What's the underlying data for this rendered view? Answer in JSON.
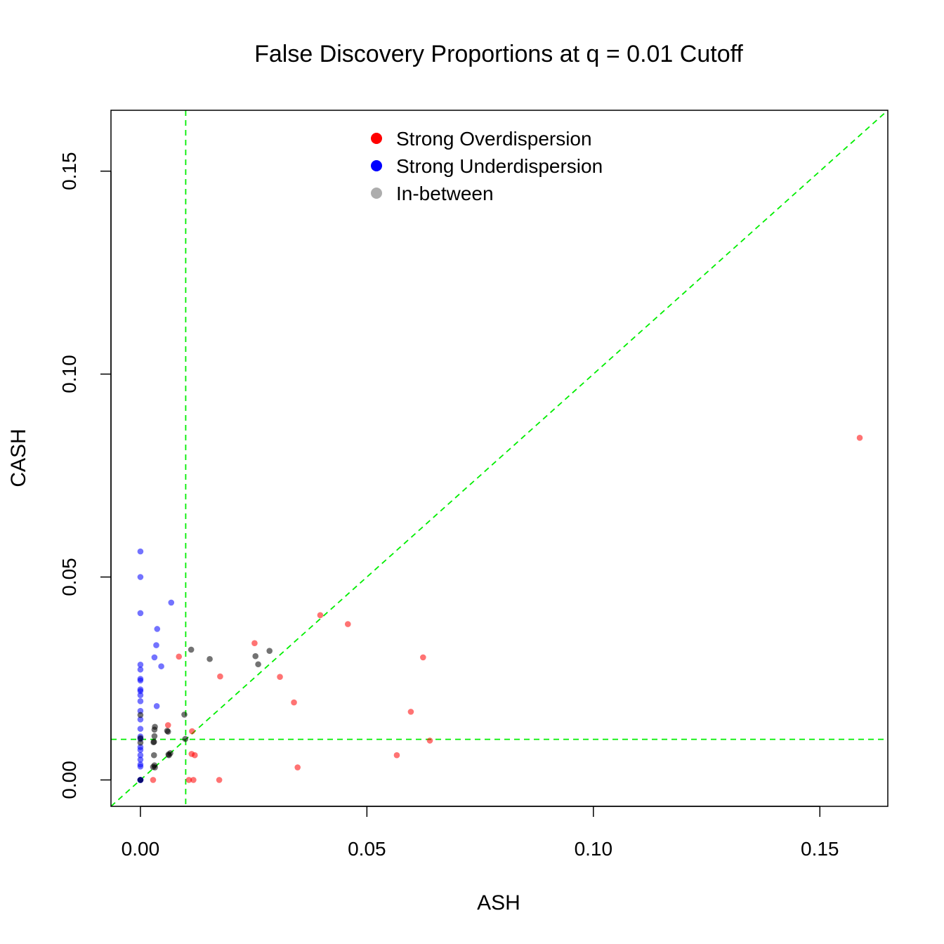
{
  "chart_data": {
    "type": "scatter",
    "title": "False Discovery Proportions at q = 0.01 Cutoff",
    "xlabel": "ASH",
    "ylabel": "CASH",
    "xlim": [
      -0.0065,
      0.165
    ],
    "ylim": [
      -0.0065,
      0.165
    ],
    "x_ticks": [
      0.0,
      0.05,
      0.1,
      0.15
    ],
    "y_ticks": [
      0.0,
      0.05,
      0.1,
      0.15
    ],
    "x_tick_labels": [
      "0.00",
      "0.05",
      "0.10",
      "0.15"
    ],
    "y_tick_labels": [
      "0.00",
      "0.05",
      "0.10",
      "0.15"
    ],
    "reference_lines": {
      "color": "#00ee00",
      "style": "dashed",
      "vertical_x": 0.01,
      "horizontal_y": 0.01,
      "diagonal": "y = x"
    },
    "legend": {
      "position": "top-center",
      "entries": [
        "Strong Overdispersion",
        "Strong Underdispersion",
        "In-between"
      ]
    },
    "series": [
      {
        "name": "Strong Overdispersion",
        "color": "#ff0000",
        "points": [
          [
            0.1588,
            0.0843
          ],
          [
            0.0397,
            0.0406
          ],
          [
            0.0458,
            0.0384
          ],
          [
            0.0252,
            0.0337
          ],
          [
            0.0624,
            0.0302
          ],
          [
            0.0085,
            0.0304
          ],
          [
            0.0176,
            0.0255
          ],
          [
            0.0308,
            0.0254
          ],
          [
            0.0339,
            0.0191
          ],
          [
            0.0597,
            0.0168
          ],
          [
            0.0061,
            0.0135
          ],
          [
            0.0114,
            0.012
          ],
          [
            0.0639,
            0.0097
          ],
          [
            0.0113,
            0.0064
          ],
          [
            0.012,
            0.0061
          ],
          [
            0.0566,
            0.0061
          ],
          [
            0.0347,
            0.0031
          ],
          [
            0.0028,
            0.0
          ],
          [
            0.0107,
            0.0
          ],
          [
            0.0117,
            0.0
          ],
          [
            0.0174,
            0.0
          ]
        ]
      },
      {
        "name": "Strong Underdispersion",
        "color": "#0000ff",
        "points": [
          [
            0.0,
            0.0563
          ],
          [
            0.0,
            0.05
          ],
          [
            0.0068,
            0.0437
          ],
          [
            0.0,
            0.0411
          ],
          [
            0.0037,
            0.0372
          ],
          [
            0.0035,
            0.0332
          ],
          [
            0.0031,
            0.0302
          ],
          [
            0.0,
            0.0284
          ],
          [
            0.0046,
            0.028
          ],
          [
            0.0,
            0.0272
          ],
          [
            0.0,
            0.0249
          ],
          [
            0.0,
            0.0245
          ],
          [
            0.0,
            0.0223
          ],
          [
            0.0,
            0.0219
          ],
          [
            0.0,
            0.0209
          ],
          [
            0.0,
            0.0194
          ],
          [
            0.0036,
            0.0182
          ],
          [
            0.0,
            0.017
          ],
          [
            0.0,
            0.0149
          ],
          [
            0.0,
            0.0126
          ],
          [
            0.0,
            0.0107
          ],
          [
            0.0,
            0.0101
          ],
          [
            0.0,
            0.0081
          ],
          [
            0.0,
            0.0074
          ],
          [
            0.0,
            0.0061
          ],
          [
            0.0,
            0.005
          ],
          [
            0.0,
            0.0038
          ],
          [
            0.0,
            0.0033
          ],
          [
            0.0,
            0.0
          ],
          [
            0.0,
            0.0
          ],
          [
            0.0,
            0.0
          ]
        ]
      },
      {
        "name": "In-between",
        "color": "#000000",
        "points": [
          [
            0.0112,
            0.0321
          ],
          [
            0.0285,
            0.0318
          ],
          [
            0.0254,
            0.0305
          ],
          [
            0.0153,
            0.0298
          ],
          [
            0.026,
            0.0285
          ],
          [
            0.0097,
            0.0161
          ],
          [
            0.0,
            0.016
          ],
          [
            0.0032,
            0.0131
          ],
          [
            0.0031,
            0.0124
          ],
          [
            0.0059,
            0.0121
          ],
          [
            0.0061,
            0.0119
          ],
          [
            0.0031,
            0.0108
          ],
          [
            0.0,
            0.0103
          ],
          [
            0.0099,
            0.0101
          ],
          [
            0.003,
            0.0094
          ],
          [
            0.0029,
            0.0093
          ],
          [
            0.0,
            0.0092
          ],
          [
            0.0066,
            0.0066
          ],
          [
            0.0062,
            0.0063
          ],
          [
            0.0063,
            0.0061
          ],
          [
            0.003,
            0.0061
          ],
          [
            0.0031,
            0.0036
          ],
          [
            0.0028,
            0.0032
          ],
          [
            0.0032,
            0.0031
          ],
          [
            0.0,
            0.0
          ]
        ]
      }
    ]
  }
}
